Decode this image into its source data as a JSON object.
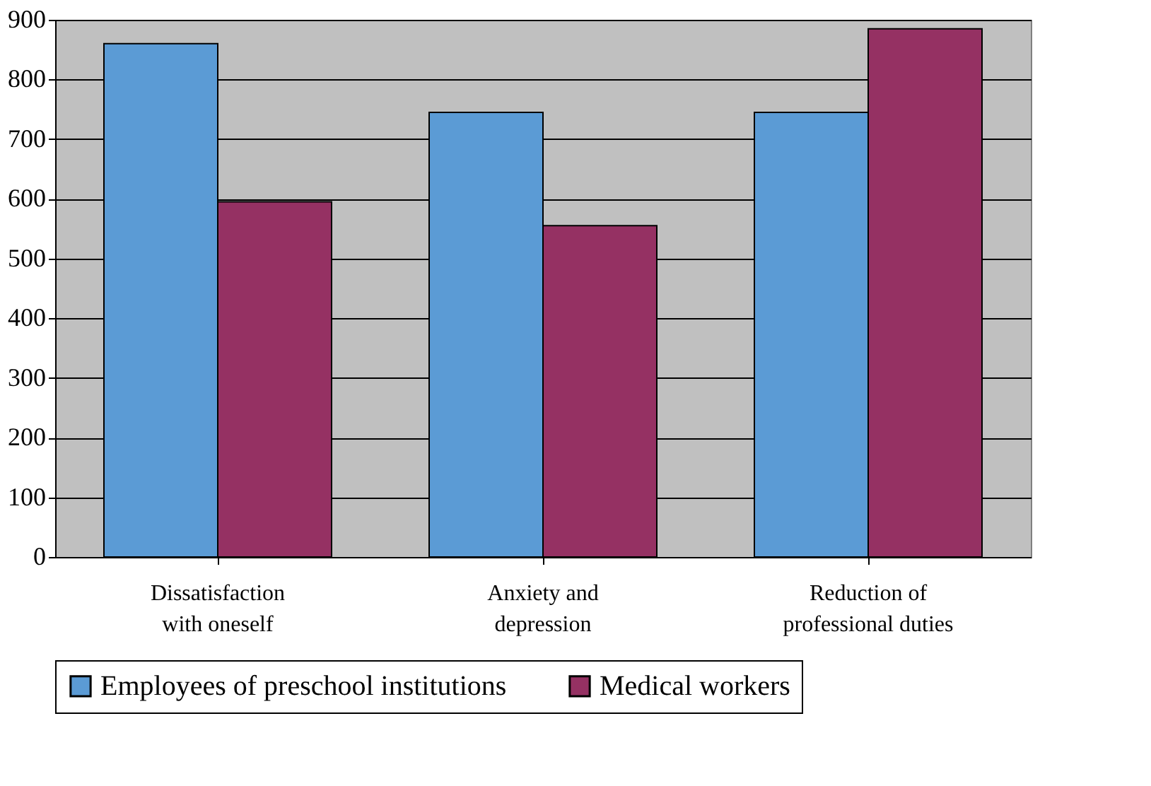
{
  "chart_data": {
    "type": "bar",
    "categories": [
      "Dissatisfaction with oneself",
      "Anxiety and depression",
      "Reduction of professional duties"
    ],
    "series": [
      {
        "name": "Employees of preschool institutions",
        "color": "#5b9bd5",
        "values": [
          860,
          745,
          745
        ]
      },
      {
        "name": "Medical workers",
        "color": "#953163",
        "values": [
          595,
          555,
          885
        ]
      }
    ],
    "ylim": [
      0,
      900
    ],
    "yticks": [
      0,
      100,
      200,
      300,
      400,
      500,
      600,
      700,
      800,
      900
    ],
    "grid": "y",
    "legend": "bottom"
  }
}
